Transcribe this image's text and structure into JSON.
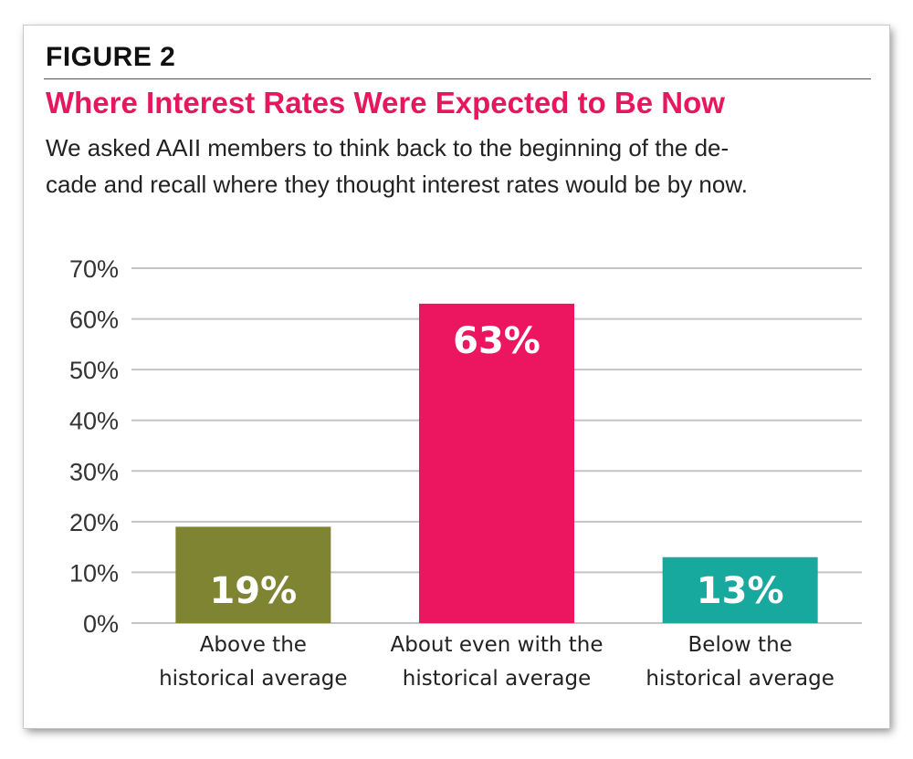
{
  "header": {
    "figure_label": "FIGURE 2",
    "title": "Where Interest Rates Were Expected to Be Now",
    "subtitle": "We asked AAII members to think back to the beginning of the de-cade and recall where they thought interest rates would be by now."
  },
  "chart_data": {
    "type": "bar",
    "categories": [
      [
        "Above the",
        "historical average"
      ],
      [
        "About even with the",
        "historical average"
      ],
      [
        "Below the",
        "historical average"
      ]
    ],
    "values": [
      19,
      63,
      13
    ],
    "data_labels": [
      "19%",
      "63%",
      "13%"
    ],
    "bar_colors": [
      "#7e8432",
      "#ec1660",
      "#17a89e"
    ],
    "data_label_position": [
      "inside-bottom",
      "inside-top",
      "inside-bottom"
    ],
    "ylim": [
      0,
      70
    ],
    "y_ticks": [
      0,
      10,
      20,
      30,
      40,
      50,
      60,
      70
    ],
    "y_tick_labels": [
      "0%",
      "10%",
      "20%",
      "30%",
      "40%",
      "50%",
      "60%",
      "70%"
    ],
    "grid": true,
    "legend": "none",
    "title": "",
    "xlabel": "",
    "ylabel": ""
  }
}
